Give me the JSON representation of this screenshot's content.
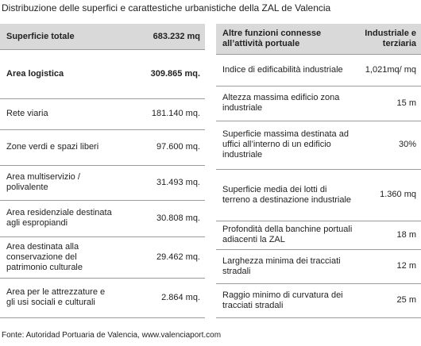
{
  "title": "Distribuzione delle superfici e carattestiche urbanistiche della ZAL de Valencia",
  "left_table": {
    "header": [
      "Superficie totale",
      "683.232 mq"
    ],
    "rows": [
      [
        "Area logistica",
        "309.865 mq."
      ],
      [
        "Rete viaria",
        "181.140 mq."
      ],
      [
        "Zone verdi e spazi liberi",
        "97.600 mq."
      ],
      [
        "Area multiservizio / polivalente",
        "31.493 mq."
      ],
      [
        "Area residenziale destinata agli espropiandi",
        "30.808 mq."
      ],
      [
        "Area destinata alla conservazione del patrimonio culturale",
        "29.462 mq."
      ],
      [
        "Area per le attrezzature e gli usi sociali e culturali",
        "2.864 mq."
      ]
    ]
  },
  "right_table": {
    "header": [
      "Altre funzioni connesse all’attività portuale",
      "Industriale e terziaria"
    ],
    "rows": [
      [
        "Indice di edificabilità industriale",
        "1,021mq/ mq"
      ],
      [
        "Altezza massima edificio zona industriale",
        "15 m"
      ],
      [
        "Superficie massima destinata ad uffici all’interno di un edificio industriale",
        "30%"
      ],
      [
        "Superficie media dei lotti di terreno a destinazione industriale",
        "1.360 mq"
      ],
      [
        "Profondità della banchine portuali adiacenti la ZAL",
        "18 m"
      ],
      [
        "Larghezza minima dei tracciati stradali",
        "12 m"
      ],
      [
        "Raggio minimo di curvatura dei tracciati stradali",
        "25 m"
      ]
    ]
  },
  "source": "Fonte: Autoridad Portuaria de Valencia, www.valenciaport.com"
}
